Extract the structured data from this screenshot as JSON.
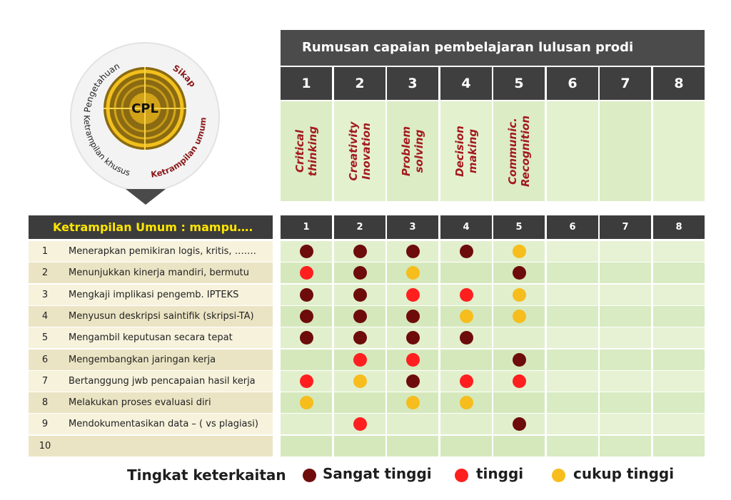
{
  "emblem": {
    "center": "CPL",
    "labels": [
      "Pengetahuan",
      "Sikap",
      "Ketrampilan khusus",
      "Ketrampilan umum"
    ]
  },
  "header": {
    "title": "Rumusan capaian pembelajaran lulusan prodi ………………………",
    "columns": [
      "1",
      "2",
      "3",
      "4",
      "5",
      "6",
      "7",
      "8"
    ],
    "competencies": [
      [
        "Critical",
        "thinking"
      ],
      [
        "Creativity",
        "Inovation"
      ],
      [
        "Problem",
        "solving"
      ],
      [
        "Decision",
        "making"
      ],
      [
        "Communic.",
        "Recognition"
      ],
      [
        "",
        ""
      ],
      [
        "",
        ""
      ],
      [
        "",
        ""
      ]
    ]
  },
  "table": {
    "title": "Ketrampilan Umum : mampu….",
    "rows": [
      {
        "no": "1",
        "text": "Menerapkan pemikiran  logis, kritis, …….",
        "levels": [
          "st",
          "st",
          "st",
          "st",
          "ct",
          "",
          "",
          ""
        ]
      },
      {
        "no": "2",
        "text": "Menunjukkan kinerja mandiri, bermutu",
        "levels": [
          "t",
          "st",
          "ct",
          "",
          "st",
          "",
          "",
          ""
        ]
      },
      {
        "no": "3",
        "text": "Mengkaji implikasi pengemb. IPTEKS",
        "levels": [
          "st",
          "st",
          "t",
          "t",
          "ct",
          "",
          "",
          ""
        ]
      },
      {
        "no": "4",
        "text": "Menyusun deskripsi saintifik (skripsi-TA)",
        "levels": [
          "st",
          "st",
          "st",
          "ct",
          "ct",
          "",
          "",
          ""
        ]
      },
      {
        "no": "5",
        "text": "Mengambil keputusan secara tepat",
        "levels": [
          "st",
          "st",
          "st",
          "st",
          "",
          "",
          "",
          ""
        ]
      },
      {
        "no": "6",
        "text": "Mengembangkan jaringan kerja",
        "levels": [
          "",
          "t",
          "t",
          "",
          "st",
          "",
          "",
          ""
        ]
      },
      {
        "no": "7",
        "text": "Bertanggung jwb pencapaian hasil kerja",
        "levels": [
          "t",
          "ct",
          "st",
          "t",
          "t",
          "",
          "",
          ""
        ]
      },
      {
        "no": "8",
        "text": "Melakukan proses evaluasi diri",
        "levels": [
          "ct",
          "",
          "ct",
          "ct",
          "",
          "",
          "",
          ""
        ]
      },
      {
        "no": "9",
        "text": "Mendokumentasikan data – ( vs plagiasi)",
        "levels": [
          "",
          "t",
          "",
          "",
          "st",
          "",
          "",
          ""
        ]
      },
      {
        "no": "10",
        "text": "",
        "levels": [
          "",
          "",
          "",
          "",
          "",
          "",
          "",
          ""
        ]
      }
    ]
  },
  "legend": {
    "title": "Tingkat keterkaitan",
    "items": [
      {
        "key": "st",
        "label": "Sangat tinggi",
        "color": "#6e0b0b"
      },
      {
        "key": "t",
        "label": "tinggi",
        "color": "#ff1f1f"
      },
      {
        "key": "ct",
        "label": "cukup tinggi",
        "color": "#f6bd1c"
      }
    ]
  }
}
